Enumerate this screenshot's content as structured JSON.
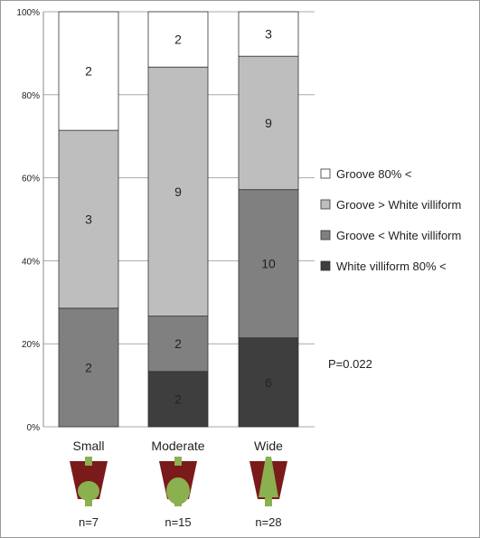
{
  "chart_data": {
    "type": "bar",
    "stacked": true,
    "normalized_percent": true,
    "categories": [
      "Small",
      "Moderate",
      "Wide"
    ],
    "sample_sizes": [
      "n=7",
      "n=15",
      "n=28"
    ],
    "series": [
      {
        "name": "White villiform 80% <",
        "color": "#3e3e3e",
        "values": [
          0,
          2,
          6
        ]
      },
      {
        "name": "Groove < White villiform",
        "color": "#808080",
        "values": [
          2,
          2,
          10
        ]
      },
      {
        "name": "Groove > White villiform",
        "color": "#bebebe",
        "values": [
          3,
          9,
          9
        ]
      },
      {
        "name": "Groove 80% <",
        "color": "#ffffff",
        "values": [
          2,
          2,
          3
        ]
      }
    ],
    "yticks": [
      "0%",
      "20%",
      "40%",
      "60%",
      "80%",
      "100%"
    ],
    "ylim": [
      0,
      100
    ],
    "grid": true,
    "legend_position": "right",
    "annotation": "P=0.022"
  },
  "icon_colors": {
    "dark_red": "#7a1a1a",
    "green": "#8bb04f"
  }
}
